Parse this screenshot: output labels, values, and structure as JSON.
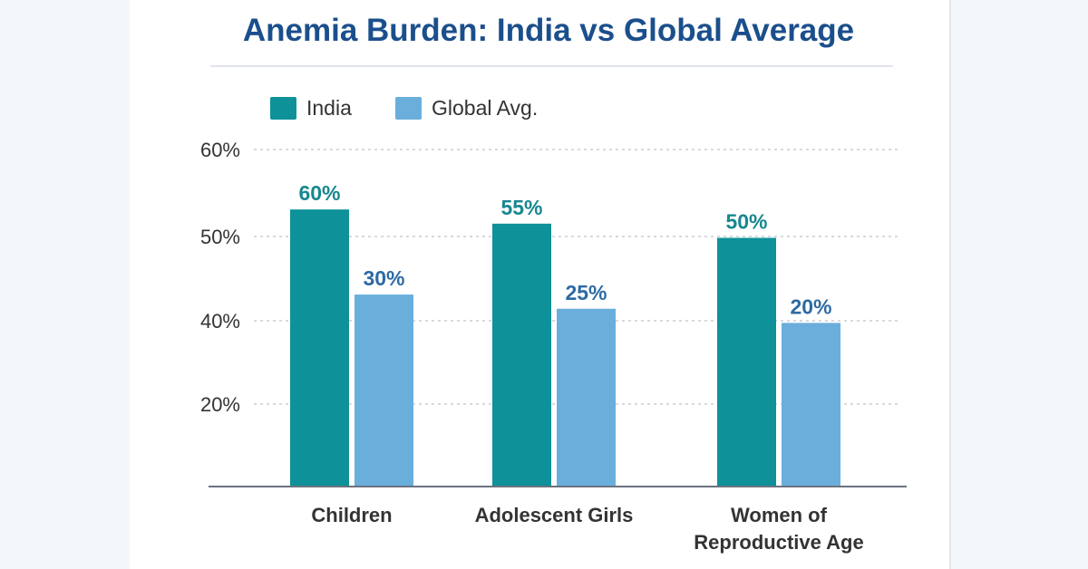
{
  "chart_data": {
    "type": "bar",
    "title": "Anemia Burden: India vs Global Average",
    "categories": [
      "Children",
      "Adolescent Girls",
      "Women of Reproductive Age"
    ],
    "category_lines": [
      [
        "Children"
      ],
      [
        "Adolescent Girls"
      ],
      [
        "Women of",
        "Reproductive Age"
      ]
    ],
    "series": [
      {
        "name": "India",
        "values": [
          60,
          55,
          50
        ],
        "labels": [
          "60%",
          "55%",
          "50%"
        ],
        "color": "#0e9199",
        "label_color": "#17878f"
      },
      {
        "name": "Global Avg.",
        "values": [
          30,
          25,
          20
        ],
        "labels": [
          "30%",
          "25%",
          "20%"
        ],
        "color": "#6aaedc",
        "label_color": "#2d6aa3"
      }
    ],
    "y_ticks": [
      "60%",
      "50%",
      "40%",
      "20%"
    ],
    "grid": true,
    "legend": "top-left",
    "xlabel": "",
    "ylabel": ""
  }
}
